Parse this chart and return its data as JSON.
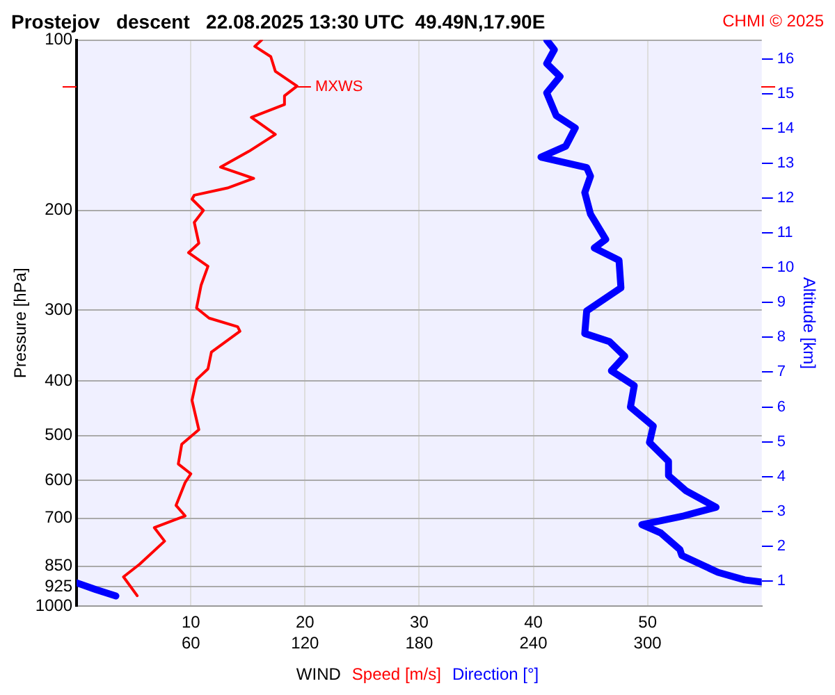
{
  "chart_data": {
    "type": "line",
    "orientation": "horizontal",
    "title": "Prostejov   descent   22.08.2025 13:30 UTC  49.49N,17.90E",
    "xlabel": "WIND",
    "ylabel": "Pressure [hPa]",
    "y2label": "Altitude [km]",
    "log": "y",
    "grid": true,
    "marker": "none",
    "line_style": "solid",
    "xlim": [
      0,
      60
    ],
    "xticks": [
      10,
      20,
      30,
      40,
      50
    ],
    "x2lim": [
      0,
      360
    ],
    "x2ticks": [
      60,
      120,
      180,
      240,
      300
    ],
    "ylim": [
      1000,
      100
    ],
    "yticks": [
      100,
      200,
      300,
      400,
      500,
      600,
      700,
      850,
      925,
      1000
    ],
    "y2lim": [
      0.28,
      16.54
    ],
    "y2ticks": [
      1,
      2,
      3,
      4,
      5,
      6,
      7,
      8,
      9,
      10,
      11,
      12,
      13,
      14,
      15,
      16
    ],
    "annotations": [
      "CHMI © 2025",
      {
        "text": "MXWS",
        "x": 19.3,
        "y": 121
      }
    ],
    "series": [
      {
        "name": "Speed [m/s]",
        "color": "#ff0000",
        "values": [
          16.2,
          15.6,
          17.0,
          17.4,
          19.3,
          18.2,
          18.2,
          15.3,
          17.4,
          15.1,
          12.6,
          15.5,
          13.2,
          10.3,
          10.1,
          11.1,
          10.3,
          10.7,
          9.8,
          11.5,
          10.9,
          10.5,
          11.6,
          14.1,
          14.3,
          11.8,
          11.5,
          10.5,
          10.1,
          10.7,
          9.2,
          8.9,
          10.0,
          9.5,
          8.7,
          9.5,
          6.8,
          7.7,
          5.5,
          4.1,
          5.3
        ],
        "x": [
          100,
          102.6,
          107,
          113.6,
          120.6,
          125.5,
          130,
          137,
          146.8,
          157.2,
          167.7,
          175.6,
          182.6,
          188,
          191,
          200,
          210,
          228.6,
          237.5,
          251,
          271,
          297.5,
          310,
          321,
          327,
          356,
          381,
          398,
          433,
          488,
          518,
          561,
          584,
          605,
          664,
          693,
          727,
          768,
          844,
          888,
          959
        ]
      },
      {
        "name": "Direction [°]",
        "color": "#0000ff",
        "axis": "x2",
        "values": [
          247,
          251,
          247,
          254,
          247,
          252,
          262,
          257,
          244,
          268,
          270,
          267,
          270,
          278,
          272,
          285,
          286,
          268,
          267,
          280,
          288,
          281,
          293,
          291,
          303,
          301,
          311,
          311,
          320,
          336,
          319,
          297,
          307,
          317,
          318,
          337,
          351,
          360,
          null,
          0,
          10,
          20.6
        ],
        "x": [
          100,
          104,
          110,
          116,
          124,
          136,
          143,
          154,
          161,
          168,
          174,
          186,
          203,
          225,
          233,
          245,
          274,
          301,
          330,
          341,
          362,
          384,
          408,
          445,
          481,
          514,
          555,
          588,
          625,
          669,
          693,
          718,
          743,
          795,
          814,
          872,
          899,
          907,
          908,
          910,
          935,
          960
        ]
      }
    ]
  }
}
